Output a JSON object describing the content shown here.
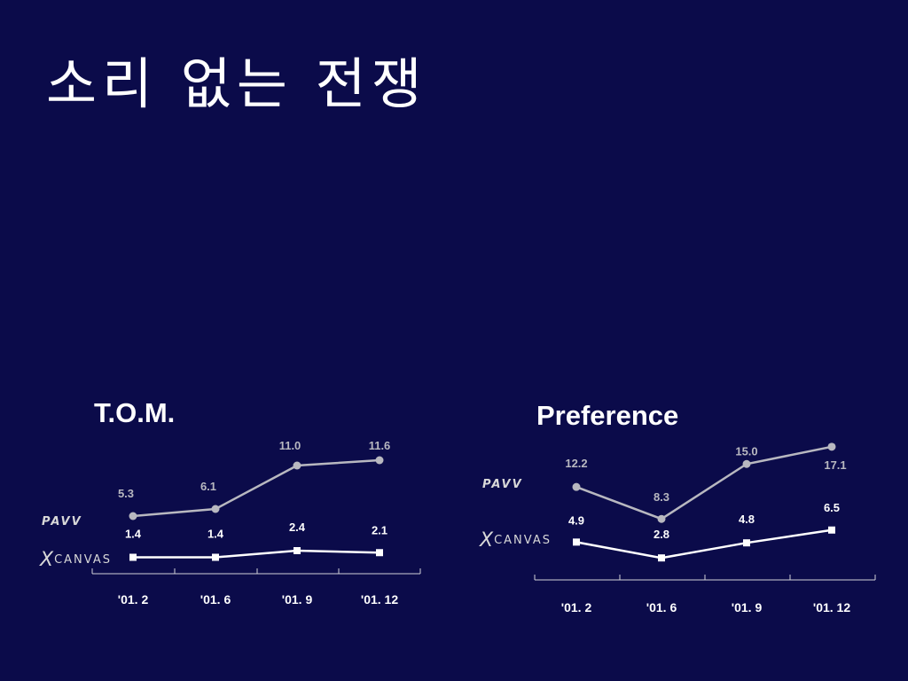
{
  "slide": {
    "title": "소리 없는 전쟁"
  },
  "colors": {
    "background": "#0b0b4a",
    "pavv": "#b8b8c0",
    "xcanvas": "#ffffff"
  },
  "brands": {
    "pavv": "PAVV",
    "xcanvas_x": "X",
    "xcanvas_rest": "CANVAS"
  },
  "chart_data": [
    {
      "type": "line",
      "title": "T.O.M.",
      "categories": [
        "'01. 2",
        "'01. 6",
        "'01. 9",
        "'01. 12"
      ],
      "series": [
        {
          "name": "PAVV",
          "values": [
            5.3,
            6.1,
            11.0,
            11.6
          ],
          "labels": [
            "5.3",
            "6.1",
            "11.0",
            "11.6"
          ],
          "marker": "circle",
          "color": "#b8b8c0"
        },
        {
          "name": "XCANVAS",
          "values": [
            1.4,
            1.4,
            2.4,
            2.1
          ],
          "labels": [
            "1.4",
            "1.4",
            "2.4",
            "2.1"
          ],
          "marker": "square",
          "color": "#ffffff"
        }
      ],
      "ylim": [
        0,
        12
      ],
      "grid": false
    },
    {
      "type": "line",
      "title": "Preference",
      "categories": [
        "'01. 2",
        "'01. 6",
        "'01. 9",
        "'01. 12"
      ],
      "series": [
        {
          "name": "PAVV",
          "values": [
            12.2,
            8.3,
            15.0,
            17.1
          ],
          "labels": [
            "12.2",
            "8.3",
            "15.0",
            "17.1"
          ],
          "marker": "circle",
          "color": "#b8b8c0"
        },
        {
          "name": "XCANVAS",
          "values": [
            4.9,
            2.8,
            4.8,
            6.5
          ],
          "labels": [
            "4.9",
            "2.8",
            "4.8",
            "6.5"
          ],
          "marker": "square",
          "color": "#ffffff"
        }
      ],
      "ylim": [
        0,
        18
      ],
      "grid": false
    }
  ]
}
